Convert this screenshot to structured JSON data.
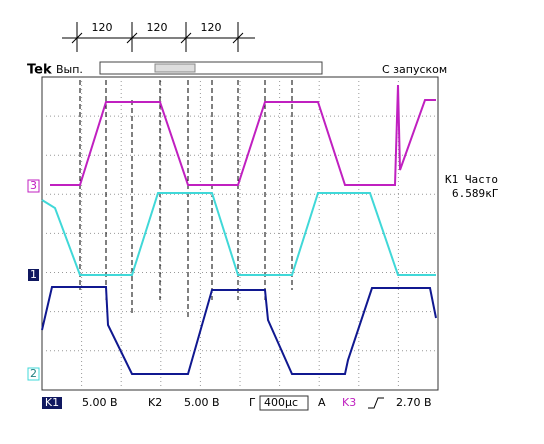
{
  "annotations": {
    "intervals": [
      "120",
      "120",
      "120"
    ]
  },
  "status_bar": {
    "brand": "Tek",
    "mode": "Вып.",
    "trigger_mode": "С запуском"
  },
  "channel_markers": [
    "3",
    "1",
    "2"
  ],
  "measurement": {
    "label": "K1 Часто",
    "value": "6.589кГ"
  },
  "bottom_bar": {
    "ch1_label": "K1",
    "ch1_scale": "5.00 В",
    "ch2_label": "K2",
    "ch2_scale": "5.00 В",
    "timebase_label": "Г",
    "timebase": "400µс",
    "trigger_label": "A",
    "trigger_source": "K3",
    "trigger_level": "2.70 В"
  }
}
